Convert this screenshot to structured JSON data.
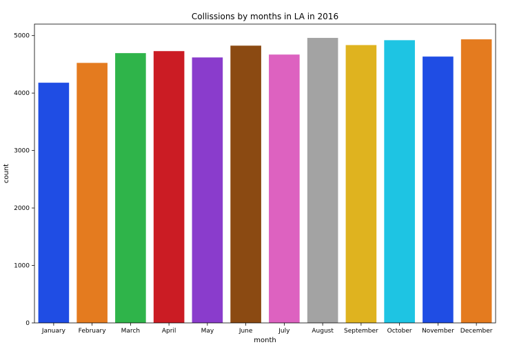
{
  "chart_data": {
    "type": "bar",
    "title": "Collissions by months in LA in 2016",
    "xlabel": "month",
    "ylabel": "count",
    "categories": [
      "January",
      "February",
      "March",
      "April",
      "May",
      "June",
      "July",
      "August",
      "September",
      "October",
      "November",
      "December"
    ],
    "values": [
      4180,
      4525,
      4695,
      4730,
      4620,
      4825,
      4670,
      4960,
      4835,
      4920,
      4635,
      4935
    ],
    "colors": [
      "#1f4de4",
      "#e47b1f",
      "#2fb44a",
      "#cb1c24",
      "#8a3ccc",
      "#8b4a12",
      "#dd62c0",
      "#a3a3a3",
      "#dfb31f",
      "#1ec4e3",
      "#1f4de4",
      "#e47b1f"
    ],
    "ylim": [
      0,
      5200
    ],
    "yticks": [
      0,
      1000,
      2000,
      3000,
      4000,
      5000
    ],
    "grid": false,
    "legend": "none"
  }
}
